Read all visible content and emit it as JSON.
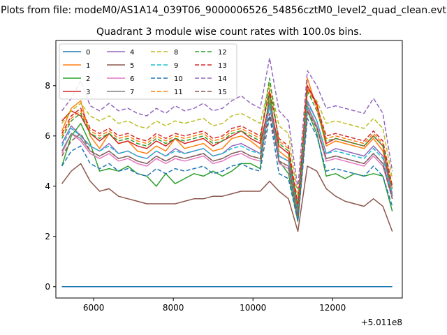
{
  "chart_data": {
    "type": "line",
    "suptitle": "Plots from file: modeM0/AS1A14_039T06_9000006526_54856cztM0_level2_quad_clean.evt",
    "title": "Quadrant 3 module wise count rates with 100.0s bins.",
    "xlabel": "",
    "ylabel": "",
    "x_offset_label": "+5.011e8",
    "xlim": [
      5050,
      13750
    ],
    "ylim": [
      -0.45,
      9.8
    ],
    "xticks": [
      6000,
      8000,
      10000,
      12000
    ],
    "yticks": [
      0,
      2,
      4,
      6,
      8
    ],
    "x_range": [
      5200,
      13500
    ],
    "bin_seconds": 100,
    "legend_location": "upper left",
    "series": [
      {
        "name": "0",
        "color": "#1f77b4",
        "dash": "",
        "values": [
          0,
          0
        ]
      },
      {
        "name": "1",
        "color": "#ff7f0e",
        "dash": "",
        "values": [
          6.2,
          7.1,
          7.4,
          6.0,
          5.5,
          6.1,
          5.7,
          5.8,
          5.4,
          5.3,
          5.6,
          5.4,
          5.9,
          5.5,
          5.6,
          5.7,
          5.4,
          5.5,
          5.9,
          6.0,
          5.8,
          5.5,
          7.4,
          5.4,
          5.1,
          3.0,
          8.3,
          7.1,
          5.6,
          5.8,
          5.7,
          5.6,
          5.5,
          5.9,
          5.4,
          3.9
        ]
      },
      {
        "name": "2",
        "color": "#2ca02c",
        "dash": "",
        "values": [
          4.8,
          6.0,
          6.5,
          5.7,
          4.6,
          4.7,
          4.6,
          4.8,
          4.5,
          4.4,
          4.0,
          4.5,
          4.1,
          4.3,
          4.5,
          4.4,
          4.6,
          4.4,
          4.6,
          4.9,
          4.9,
          4.7,
          7.7,
          5.0,
          4.5,
          2.6,
          7.0,
          6.1,
          4.4,
          4.5,
          4.3,
          4.5,
          4.4,
          4.5,
          4.4,
          3.0
        ]
      },
      {
        "name": "3",
        "color": "#d62728",
        "dash": "",
        "values": [
          6.6,
          7.0,
          6.8,
          6.1,
          5.8,
          6.1,
          5.7,
          5.8,
          5.6,
          5.5,
          5.8,
          5.6,
          5.9,
          5.7,
          5.8,
          5.9,
          5.6,
          5.8,
          6.0,
          6.2,
          5.9,
          5.7,
          7.3,
          5.6,
          5.3,
          3.1,
          8.0,
          7.3,
          5.7,
          5.9,
          5.8,
          5.7,
          5.6,
          6.0,
          5.6,
          3.6
        ]
      },
      {
        "name": "4",
        "color": "#9467bd",
        "dash": "",
        "values": [
          5.7,
          6.4,
          6.0,
          5.6,
          5.4,
          5.7,
          5.3,
          5.4,
          5.2,
          5.1,
          5.4,
          5.2,
          5.5,
          5.3,
          5.4,
          5.5,
          5.2,
          5.3,
          5.6,
          5.7,
          5.5,
          5.3,
          7.3,
          5.2,
          5.0,
          2.9,
          7.4,
          6.6,
          5.3,
          5.5,
          5.4,
          5.3,
          5.2,
          5.6,
          5.2,
          3.7
        ]
      },
      {
        "name": "5",
        "color": "#8c564b",
        "dash": "",
        "values": [
          4.1,
          4.6,
          4.9,
          4.2,
          3.8,
          3.9,
          3.6,
          3.5,
          3.4,
          3.3,
          3.3,
          3.3,
          3.3,
          3.4,
          3.5,
          3.5,
          3.6,
          3.6,
          3.7,
          3.8,
          3.8,
          3.8,
          4.2,
          3.8,
          3.5,
          2.2,
          4.8,
          4.6,
          3.9,
          3.6,
          3.4,
          3.3,
          3.2,
          3.5,
          3.2,
          2.2
        ]
      },
      {
        "name": "6",
        "color": "#e377c2",
        "dash": "",
        "values": [
          5.3,
          6.1,
          5.8,
          5.3,
          5.1,
          5.3,
          5.0,
          5.1,
          4.9,
          4.8,
          5.1,
          4.9,
          5.1,
          5.0,
          5.1,
          5.2,
          4.9,
          5.0,
          5.2,
          5.3,
          5.1,
          5.0,
          7.2,
          4.9,
          4.7,
          2.8,
          7.1,
          6.3,
          5.0,
          5.1,
          5.0,
          4.9,
          4.8,
          5.2,
          4.8,
          3.5
        ]
      },
      {
        "name": "7",
        "color": "#7f7f7f",
        "dash": "",
        "values": [
          5.4,
          6.1,
          5.9,
          5.4,
          5.2,
          5.4,
          5.1,
          5.2,
          5.0,
          4.9,
          5.2,
          5.0,
          5.2,
          5.1,
          5.2,
          5.3,
          5.0,
          5.1,
          5.3,
          5.4,
          5.2,
          5.1,
          7.3,
          5.0,
          4.8,
          2.8,
          7.2,
          6.4,
          5.1,
          5.2,
          5.1,
          5.0,
          4.9,
          5.3,
          4.9,
          3.6
        ]
      },
      {
        "name": "8",
        "color": "#bcbd22",
        "dash": "6,3",
        "values": [
          6.5,
          7.0,
          7.3,
          6.8,
          6.6,
          6.8,
          6.5,
          6.6,
          6.4,
          6.3,
          6.6,
          6.4,
          6.6,
          6.5,
          6.6,
          6.7,
          6.4,
          6.5,
          6.8,
          6.9,
          6.7,
          6.5,
          8.1,
          6.4,
          6.1,
          3.6,
          7.7,
          7.4,
          6.5,
          6.6,
          6.5,
          6.4,
          6.3,
          6.7,
          6.3,
          4.3
        ]
      },
      {
        "name": "9",
        "color": "#17becf",
        "dash": "6,3",
        "values": [
          5.6,
          6.3,
          6.0,
          5.6,
          5.4,
          5.6,
          5.3,
          5.4,
          5.2,
          5.1,
          5.4,
          5.2,
          5.4,
          5.3,
          5.4,
          5.5,
          5.2,
          5.3,
          5.5,
          5.6,
          5.4,
          5.3,
          7.2,
          5.2,
          5.0,
          2.9,
          7.3,
          6.6,
          5.3,
          5.4,
          5.3,
          5.2,
          5.1,
          5.5,
          5.1,
          3.7
        ]
      },
      {
        "name": "10",
        "color": "#1f77b4",
        "dash": "6,3",
        "values": [
          4.8,
          5.4,
          5.6,
          4.9,
          4.7,
          4.9,
          4.6,
          4.7,
          4.5,
          4.4,
          4.7,
          4.5,
          4.7,
          4.6,
          4.7,
          4.8,
          4.5,
          4.6,
          4.8,
          4.9,
          4.7,
          4.6,
          6.8,
          4.5,
          4.3,
          2.6,
          6.7,
          6.0,
          4.6,
          4.7,
          4.6,
          4.5,
          4.4,
          4.8,
          4.4,
          3.2
        ]
      },
      {
        "name": "11",
        "color": "#ff7f0e",
        "dash": "6,3",
        "values": [
          6.0,
          6.7,
          7.0,
          6.2,
          6.0,
          6.2,
          5.9,
          6.0,
          5.8,
          5.7,
          6.0,
          5.8,
          6.0,
          5.9,
          6.0,
          6.1,
          5.8,
          5.9,
          6.2,
          6.3,
          6.1,
          5.9,
          7.9,
          5.8,
          5.5,
          3.2,
          7.9,
          7.2,
          5.9,
          6.0,
          5.9,
          5.8,
          5.7,
          6.1,
          5.7,
          4.0
        ]
      },
      {
        "name": "12",
        "color": "#2ca02c",
        "dash": "6,3",
        "values": [
          5.9,
          6.6,
          6.9,
          6.1,
          5.9,
          6.1,
          5.8,
          5.9,
          5.7,
          5.6,
          5.9,
          5.7,
          5.9,
          5.8,
          5.9,
          6.0,
          5.7,
          5.8,
          6.1,
          6.2,
          6.0,
          5.8,
          8.3,
          5.7,
          5.4,
          3.2,
          7.8,
          7.0,
          5.8,
          5.9,
          5.8,
          5.7,
          5.6,
          6.0,
          5.6,
          3.9
        ]
      },
      {
        "name": "13",
        "color": "#d62728",
        "dash": "6,3",
        "values": [
          6.1,
          6.8,
          7.1,
          6.3,
          6.1,
          6.3,
          6.0,
          6.1,
          5.9,
          5.8,
          6.1,
          5.9,
          6.1,
          6.0,
          6.1,
          6.2,
          5.9,
          6.0,
          6.3,
          6.4,
          6.2,
          6.0,
          7.8,
          5.9,
          5.6,
          3.3,
          8.0,
          7.2,
          6.0,
          6.1,
          6.0,
          5.9,
          5.8,
          6.2,
          5.8,
          4.0
        ]
      },
      {
        "name": "14",
        "color": "#9467bd",
        "dash": "6,3",
        "values": [
          7.0,
          7.5,
          8.2,
          7.2,
          7.0,
          7.3,
          7.0,
          7.1,
          6.9,
          6.8,
          7.1,
          6.9,
          7.2,
          7.0,
          7.1,
          7.3,
          7.0,
          7.1,
          7.4,
          7.6,
          7.3,
          7.1,
          9.1,
          7.0,
          6.6,
          3.9,
          8.6,
          8.0,
          7.1,
          7.2,
          7.1,
          7.0,
          6.9,
          7.5,
          6.9,
          4.6
        ]
      },
      {
        "name": "15",
        "color": "#8c564b",
        "dash": "6,3",
        "values": [
          5.2,
          5.8,
          6.1,
          5.4,
          5.2,
          5.4,
          5.1,
          5.2,
          5.0,
          4.9,
          5.2,
          5.0,
          5.2,
          5.1,
          5.2,
          5.3,
          5.0,
          5.1,
          5.3,
          5.4,
          5.2,
          5.1,
          6.9,
          5.0,
          4.8,
          2.8,
          7.0,
          6.3,
          5.1,
          5.2,
          5.1,
          5.0,
          4.9,
          5.3,
          4.9,
          3.5
        ]
      }
    ]
  }
}
